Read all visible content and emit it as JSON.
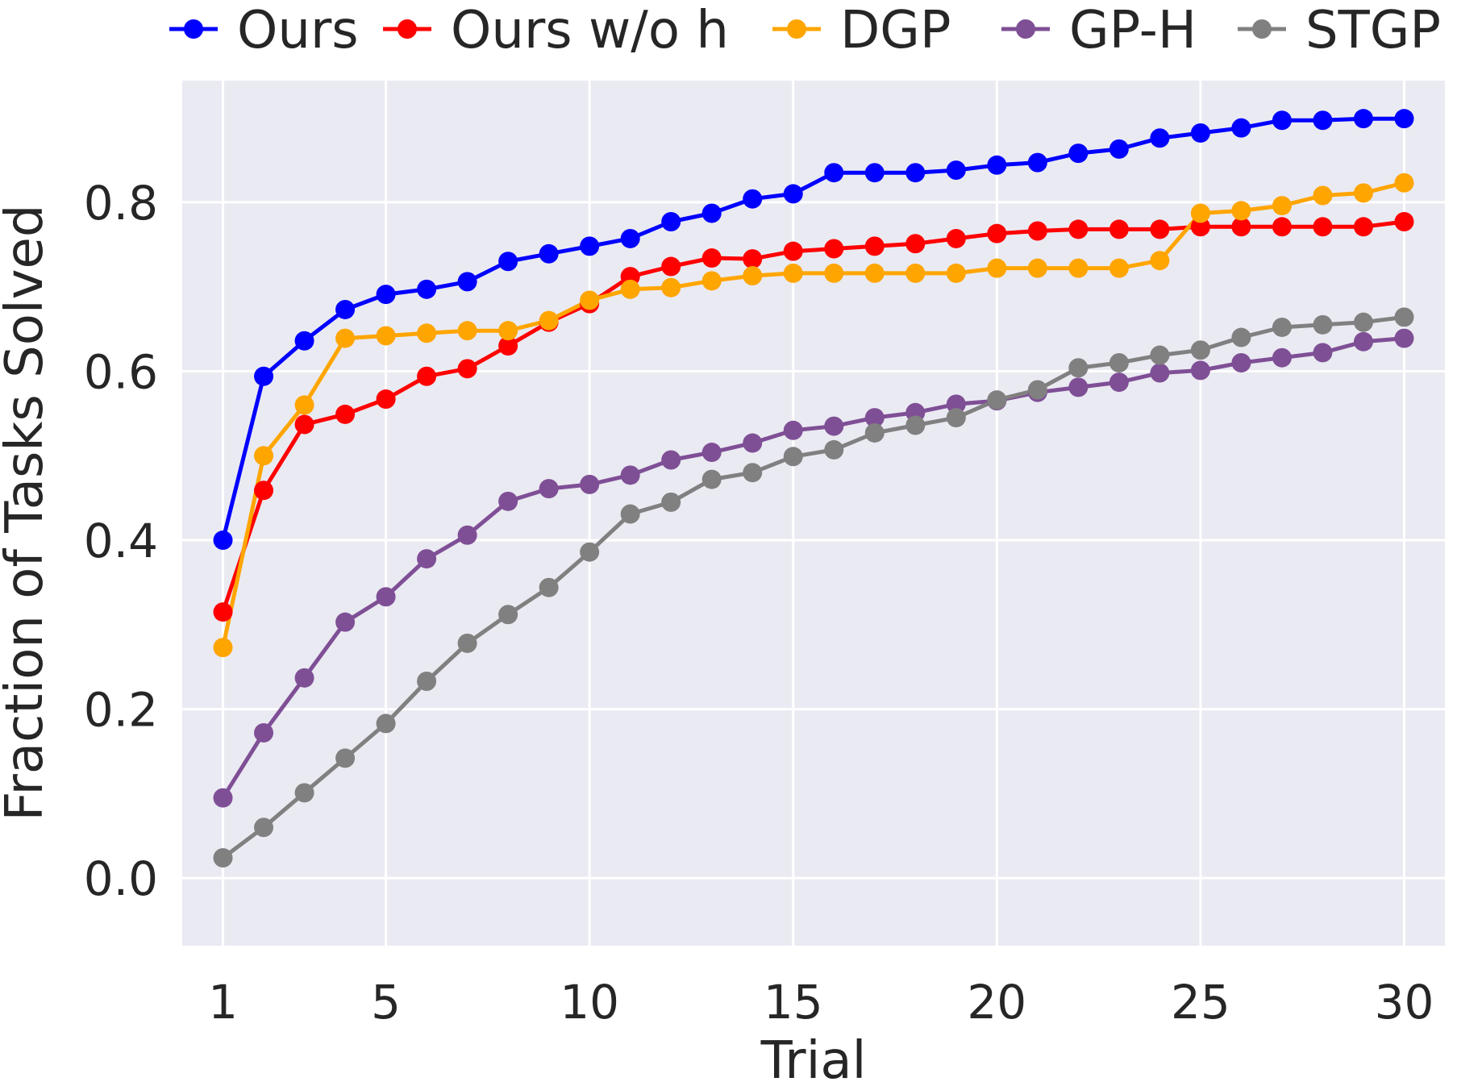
{
  "chart_data": {
    "type": "line",
    "title": "",
    "xlabel": "Trial",
    "ylabel": "Fraction of Tasks Solved",
    "xlim": [
      0.0,
      31.0
    ],
    "ylim": [
      -0.08,
      0.944
    ],
    "xticks": [
      1,
      5,
      10,
      15,
      20,
      25,
      30
    ],
    "yticks": [
      0.0,
      0.2,
      0.4,
      0.6,
      0.8
    ],
    "ytick_labels": [
      "0.0",
      "0.2",
      "0.4",
      "0.6",
      "0.8"
    ],
    "grid": true,
    "legend_position": "top",
    "x": [
      1,
      2,
      3,
      4,
      5,
      6,
      7,
      8,
      9,
      10,
      11,
      12,
      13,
      14,
      15,
      16,
      17,
      18,
      19,
      20,
      21,
      22,
      23,
      24,
      25,
      26,
      27,
      28,
      29,
      30
    ],
    "series": [
      {
        "name": "Ours",
        "color": "#0000ff",
        "values": [
          0.4,
          0.594,
          0.636,
          0.673,
          0.691,
          0.697,
          0.706,
          0.73,
          0.739,
          0.748,
          0.757,
          0.777,
          0.787,
          0.804,
          0.81,
          0.835,
          0.835,
          0.835,
          0.838,
          0.844,
          0.847,
          0.858,
          0.863,
          0.876,
          0.882,
          0.888,
          0.897,
          0.897,
          0.899,
          0.899
        ]
      },
      {
        "name": "Ours w/o h",
        "color": "#ff0000",
        "values": [
          0.315,
          0.459,
          0.537,
          0.549,
          0.567,
          0.594,
          0.603,
          0.63,
          0.658,
          0.68,
          0.712,
          0.724,
          0.734,
          0.733,
          0.742,
          0.745,
          0.748,
          0.751,
          0.757,
          0.763,
          0.766,
          0.768,
          0.768,
          0.768,
          0.771,
          0.771,
          0.771,
          0.771,
          0.771,
          0.777
        ]
      },
      {
        "name": "DGP",
        "color": "#ffa500",
        "values": [
          0.273,
          0.5,
          0.56,
          0.639,
          0.642,
          0.645,
          0.648,
          0.648,
          0.66,
          0.684,
          0.697,
          0.699,
          0.707,
          0.713,
          0.716,
          0.716,
          0.716,
          0.716,
          0.716,
          0.722,
          0.722,
          0.722,
          0.722,
          0.731,
          0.787,
          0.79,
          0.796,
          0.808,
          0.811,
          0.823
        ]
      },
      {
        "name": "GP-H",
        "color": "#7f4f96",
        "values": [
          0.095,
          0.172,
          0.237,
          0.303,
          0.333,
          0.378,
          0.406,
          0.446,
          0.461,
          0.466,
          0.477,
          0.495,
          0.504,
          0.515,
          0.53,
          0.535,
          0.545,
          0.551,
          0.561,
          0.565,
          0.575,
          0.581,
          0.587,
          0.598,
          0.601,
          0.61,
          0.616,
          0.622,
          0.635,
          0.639
        ]
      },
      {
        "name": "STGP",
        "color": "#808080",
        "values": [
          0.024,
          0.06,
          0.101,
          0.142,
          0.183,
          0.233,
          0.278,
          0.312,
          0.344,
          0.386,
          0.431,
          0.445,
          0.472,
          0.48,
          0.499,
          0.507,
          0.527,
          0.536,
          0.545,
          0.566,
          0.578,
          0.604,
          0.61,
          0.619,
          0.625,
          0.64,
          0.652,
          0.655,
          0.658,
          0.664
        ]
      }
    ]
  }
}
